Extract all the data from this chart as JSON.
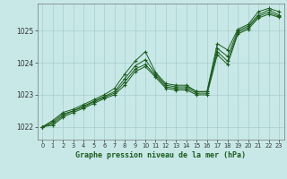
{
  "title": "Graphe pression niveau de la mer (hPa)",
  "background_color": "#c8e8e8",
  "grid_color": "#a8cccc",
  "line_color": "#1a5c1a",
  "xlim": [
    -0.5,
    23.5
  ],
  "ylim": [
    1021.6,
    1025.85
  ],
  "yticks": [
    1022,
    1023,
    1024,
    1025
  ],
  "xticks": [
    0,
    1,
    2,
    3,
    4,
    5,
    6,
    7,
    8,
    9,
    10,
    11,
    12,
    13,
    14,
    15,
    16,
    17,
    18,
    19,
    20,
    21,
    22,
    23
  ],
  "series": [
    [
      1022.0,
      1022.2,
      1022.45,
      1022.55,
      1022.7,
      1022.85,
      1023.0,
      1023.2,
      1023.65,
      1024.05,
      1024.35,
      1023.7,
      1023.35,
      1023.3,
      1023.3,
      1023.1,
      1023.1,
      1024.6,
      1024.4,
      1025.05,
      1025.2,
      1025.6,
      1025.7,
      1025.6
    ],
    [
      1022.0,
      1022.15,
      1022.4,
      1022.5,
      1022.65,
      1022.8,
      1022.95,
      1023.1,
      1023.5,
      1023.9,
      1024.1,
      1023.65,
      1023.3,
      1023.25,
      1023.25,
      1023.1,
      1023.1,
      1024.45,
      1024.2,
      1025.0,
      1025.15,
      1025.5,
      1025.65,
      1025.5
    ],
    [
      1022.0,
      1022.1,
      1022.35,
      1022.5,
      1022.62,
      1022.78,
      1022.92,
      1023.05,
      1023.4,
      1023.8,
      1023.95,
      1023.6,
      1023.25,
      1023.2,
      1023.2,
      1023.05,
      1023.05,
      1024.35,
      1024.05,
      1024.95,
      1025.1,
      1025.45,
      1025.58,
      1025.45
    ],
    [
      1022.0,
      1022.05,
      1022.3,
      1022.45,
      1022.58,
      1022.73,
      1022.88,
      1023.0,
      1023.3,
      1023.72,
      1023.88,
      1023.55,
      1023.2,
      1023.15,
      1023.15,
      1023.0,
      1023.0,
      1024.25,
      1023.95,
      1024.9,
      1025.05,
      1025.4,
      1025.52,
      1025.42
    ]
  ]
}
